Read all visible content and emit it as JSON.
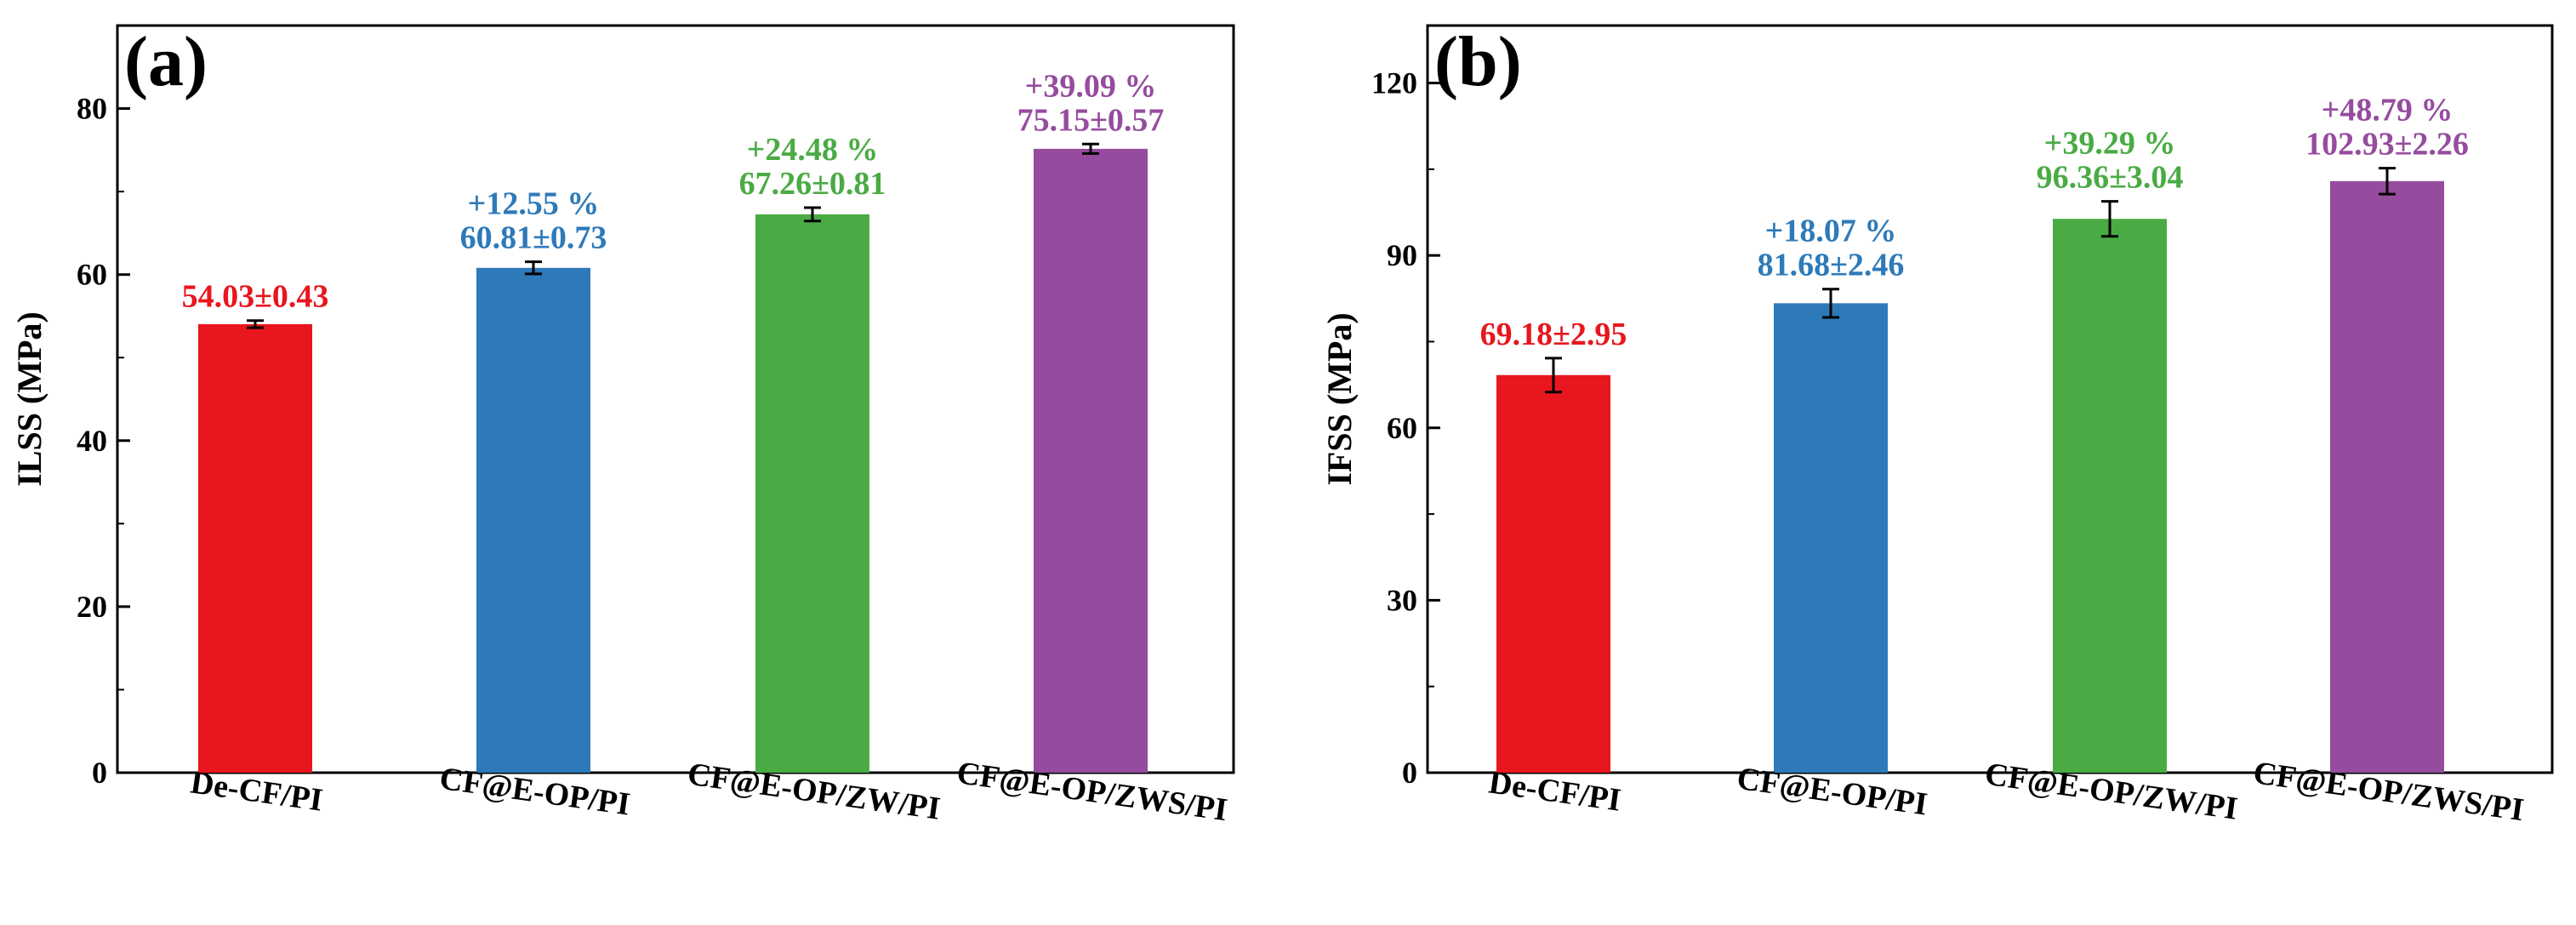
{
  "chart_data": [
    {
      "type": "bar",
      "panel_label": "(a)",
      "ylabel": "ILSS (MPa)",
      "ylim": [
        0,
        90
      ],
      "yticks": [
        0,
        20,
        40,
        60,
        80
      ],
      "ytick_labels": [
        "0",
        "20",
        "40",
        "60",
        "80"
      ],
      "minor_step": 10,
      "categories": [
        "De-CF/PI",
        "CF@E-OP/PI",
        "CF@E-OP/ZW/PI",
        "CF@E-OP/ZWS/PI"
      ],
      "values": [
        54.03,
        60.81,
        67.26,
        75.15
      ],
      "errors": [
        0.43,
        0.73,
        0.81,
        0.57
      ],
      "value_labels": [
        "54.03±0.43",
        "60.81±0.73",
        "67.26±0.81",
        "75.15±0.57"
      ],
      "increase_labels": [
        "",
        "+12.55 %",
        "+24.48 %",
        "+39.09 %"
      ],
      "colors": [
        "#e8161e",
        "#2e7ab9",
        "#4aab44",
        "#964c9e"
      ]
    },
    {
      "type": "bar",
      "panel_label": "(b)",
      "ylabel": "IFSS (MPa)",
      "ylim": [
        0,
        130
      ],
      "yticks": [
        0,
        30,
        60,
        90,
        120
      ],
      "ytick_labels": [
        "0",
        "30",
        "60",
        "90",
        "120"
      ],
      "minor_step": 15,
      "categories": [
        "De-CF/PI",
        "CF@E-OP/PI",
        "CF@E-OP/ZW/PI",
        "CF@E-OP/ZWS/PI"
      ],
      "values": [
        69.18,
        81.68,
        96.36,
        102.93
      ],
      "errors": [
        2.95,
        2.46,
        3.04,
        2.26
      ],
      "value_labels": [
        "69.18±2.95",
        "81.68±2.46",
        "96.36±3.04",
        "102.93±2.26"
      ],
      "increase_labels": [
        "",
        "+18.07 %",
        "+39.29 %",
        "+48.79 %"
      ],
      "colors": [
        "#e8161e",
        "#2e7ab9",
        "#4aab44",
        "#964c9e"
      ]
    }
  ]
}
